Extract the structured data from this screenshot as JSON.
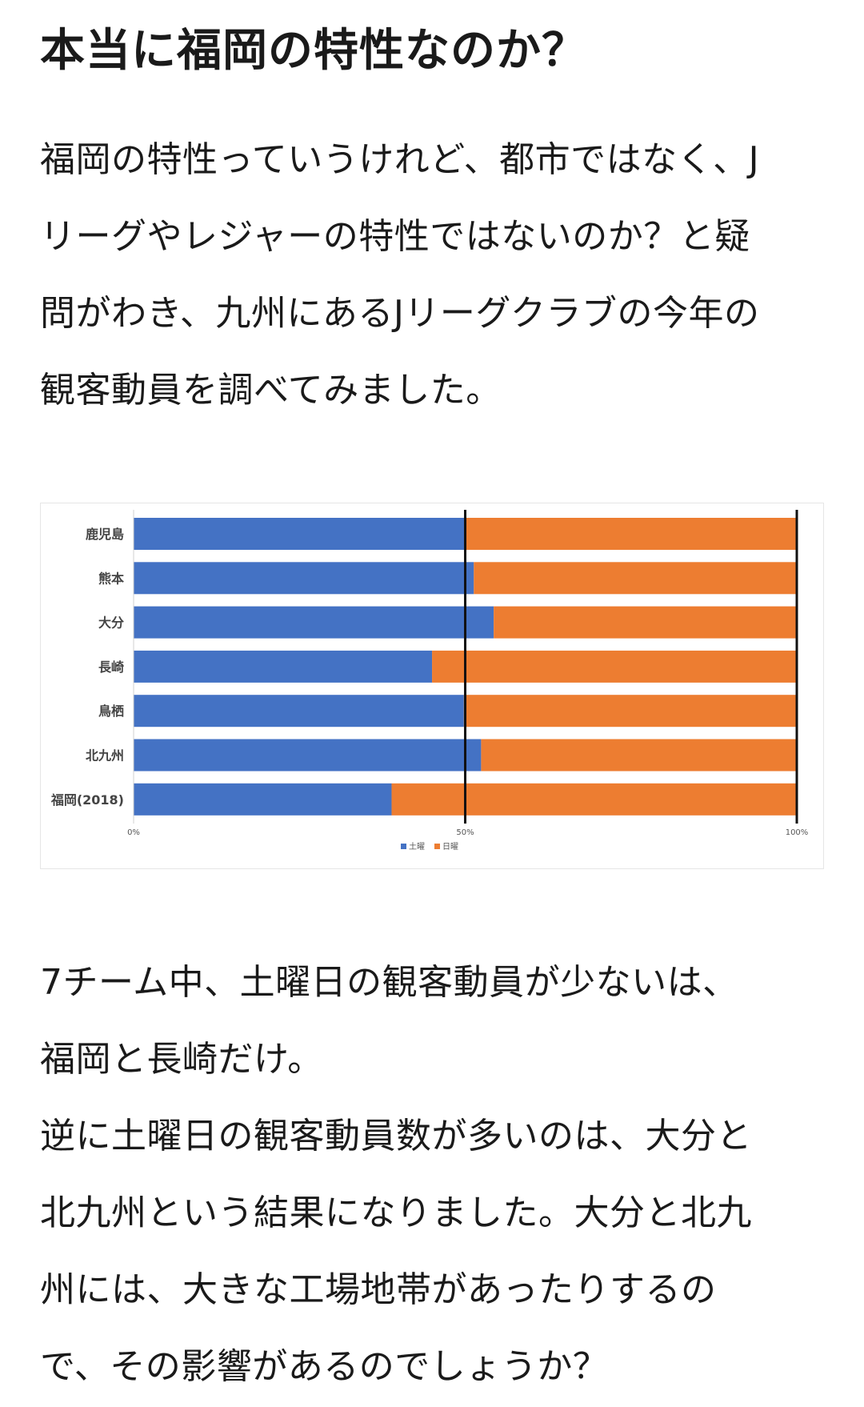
{
  "heading": "本当に福岡の特性なのか？",
  "para1": [
    "福岡の特性っていうけれど、都市ではなく、J",
    "リーグやレジャーの特性ではないのか？と疑",
    "問がわき、九州にあるJリーグクラブの今年の",
    "観客動員を調べてみました。"
  ],
  "para2": [
    "7チーム中、土曜日の観客動員が少ないは、",
    "福岡と長崎だけ。",
    "逆に土曜日の観客動員数が多いのは、大分と",
    "北九州という結果になりました。大分と北九",
    "州には、大きな工場地帯があったりするの",
    "で、その影響があるのでしょうか？"
  ],
  "chart_data": {
    "type": "bar",
    "orientation": "horizontal",
    "stacked": "percent",
    "categories": [
      "鹿児島",
      "熊本",
      "大分",
      "長崎",
      "鳥栖",
      "北九州",
      "福岡(2018)"
    ],
    "series": [
      {
        "name": "土曜",
        "color": "#4472C4",
        "values": [
          50.0,
          51.3,
          54.3,
          45.0,
          49.8,
          52.4,
          38.9
        ]
      },
      {
        "name": "日曜",
        "color": "#ED7D31",
        "values": [
          50.0,
          48.7,
          45.7,
          55.0,
          50.2,
          47.6,
          61.1
        ]
      }
    ],
    "x_ticks": [
      "0%",
      "50%",
      "100%"
    ],
    "xlim": [
      0,
      100
    ],
    "title": "",
    "xlabel": "",
    "ylabel": "",
    "legend_position": "bottom",
    "grid": "vertical lines at 50% and 100%"
  }
}
